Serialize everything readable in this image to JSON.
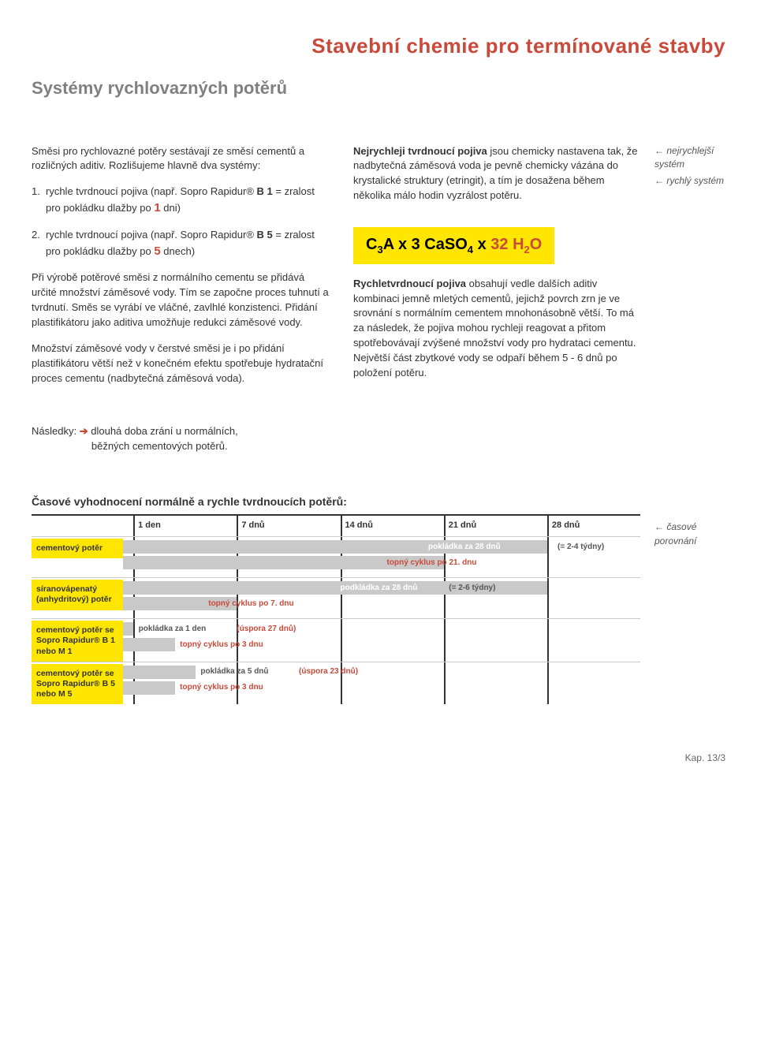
{
  "header": {
    "title": "Stavební chemie pro termínované stavby",
    "subtitle": "Systémy rychlovazných potěrů"
  },
  "left": {
    "intro": "Směsi pro rychlovazné potěry sestávají ze směsí cementů a rozličných aditiv. Rozlišujeme hlavně dva systémy:",
    "item1_pre": "rychle tvrdnoucí pojiva (např. Sopro Rapidur® ",
    "item1_bold": "B 1",
    "item1_post": " = zralost pro pokládku dlažby po ",
    "item1_num": "1",
    "item1_end": " dni)",
    "item2_pre": "rychle tvrdnoucí pojiva (např. Sopro Rapidur® ",
    "item2_bold": "B 5",
    "item2_post": " = zralost pro pokládku dlažby po ",
    "item2_num": "5",
    "item2_end": " dnech)",
    "para1": "Při výrobě potěrové směsi z normálního cementu se přidává určité množství záměsové vody. Tím se započne proces tuhnutí a tvrdnutí. Směs se vyrábí ve vláčné, zavlhlé konzistenci. Přidání plastifikátoru jako aditiva umožňuje redukci záměsové vody.",
    "para2": "Množství záměsové vody v čerstvé směsi je i po přidání plastifikátoru větší než v konečném efektu spotřebuje hydratační proces cementu (nadbytečná záměsová voda)."
  },
  "right": {
    "para1_bold": "Nejrychleji tvrdnoucí pojiva",
    "para1": " jsou chemicky nastavena tak, že nadbytečná záměsová voda je pevně chemicky vázána do krystalické struktury (etringit), a tím je dosažena během několika málo hodin vyzrálost potěru.",
    "formula_a": "C",
    "formula_sub1": "3",
    "formula_b": "A x 3 CaSO",
    "formula_sub2": "4",
    "formula_c": " x ",
    "formula_red": "32 H",
    "formula_sub3": "2",
    "formula_red2": "O",
    "para2_bold": "Rychletvrdnoucí pojiva",
    "para2": " obsahují vedle dalších aditiv kombinaci jemně mletých cementů, jejichž povrch zrn je ve srovnání s normálním cementem mnohonásobně větší. To má za následek, že pojiva mohou rychleji reagovat a přitom spotřebovávají zvýšené množství vody pro hydrataci cementu. Největší část zbytkové vody se odpaří během 5 - 6 dnů po položení potěru.",
    "side1": "nejrychlejší systém",
    "side2": "rychlý systém"
  },
  "consequences": {
    "label": "Následky:",
    "arrow": "➔",
    "text1": "dlouhá doba zrání u normálních,",
    "text2": "běžných cementových potěrů."
  },
  "timeline": {
    "heading": "Časové vyhodnocení normálně a rychle tvrdnoucích potěrů:",
    "side": "časové porovnání",
    "headers": [
      "1 den",
      "7 dnů",
      "14 dnů",
      "21 dnů",
      "28 dnů"
    ],
    "tick_positions_pct": [
      2,
      22,
      42,
      62,
      82
    ],
    "rows": [
      {
        "label": "cementový potěr",
        "bars": [
          {
            "width_pct": 82,
            "fill": "#c9c9c9",
            "text": "pokládka za 28 dnů",
            "text_pos_pct": 59,
            "text_color": "white",
            "after_text": "(= 2-4 týdny)",
            "after_pos_pct": 84,
            "after_color": "grey"
          },
          {
            "width_pct": 62,
            "fill": "#c9c9c9",
            "text": "topný cyklus po 21. dnu",
            "text_pos_pct": 51,
            "text_color": "red"
          }
        ]
      },
      {
        "label": "síranovápenatý (anhydritový) potěr",
        "bars": [
          {
            "width_pct": 82,
            "fill": "#c9c9c9",
            "text": "podkládka za 28 dnů",
            "text_pos_pct": 42,
            "text_color": "white",
            "after_text": "(= 2-6 týdny)",
            "after_pos_pct": 63,
            "after_color": "grey"
          },
          {
            "width_pct": 22,
            "fill": "#c9c9c9",
            "text": "topný cyklus po 7. dnu",
            "text_pos_pct": 16.5,
            "text_color": "red"
          }
        ]
      },
      {
        "label": "cementový potěr se Sopro Rapidur® B 1 nebo M 1",
        "bars": [
          {
            "width_pct": 2,
            "fill": "#c9c9c9",
            "text": "pokládka za 1 den",
            "text_pos_pct": 3,
            "text_color": "grey",
            "after_text": "(úspora 27 dnů)",
            "after_pos_pct": 22,
            "after_color": "red"
          },
          {
            "width_pct": 10,
            "fill": "#c9c9c9",
            "text": "topný cyklus po 3 dnu",
            "text_pos_pct": 11,
            "text_color": "red"
          }
        ]
      },
      {
        "label": "cementový potěr se Sopro Rapidur® B 5 nebo M 5",
        "bars": [
          {
            "width_pct": 14,
            "fill": "#c9c9c9",
            "text": "pokládka za 5 dnů",
            "text_pos_pct": 15,
            "text_color": "grey",
            "after_text": "(úspora 23 dnů)",
            "after_pos_pct": 34,
            "after_color": "red"
          },
          {
            "width_pct": 10,
            "fill": "#c9c9c9",
            "text": "topný cyklus po 3 dnu",
            "text_pos_pct": 11,
            "text_color": "red"
          }
        ]
      }
    ]
  },
  "footer": "Kap. 13/3",
  "colors": {
    "primary_red": "#c94a3a",
    "yellow": "#ffe600",
    "grey_bar": "#c9c9c9"
  }
}
